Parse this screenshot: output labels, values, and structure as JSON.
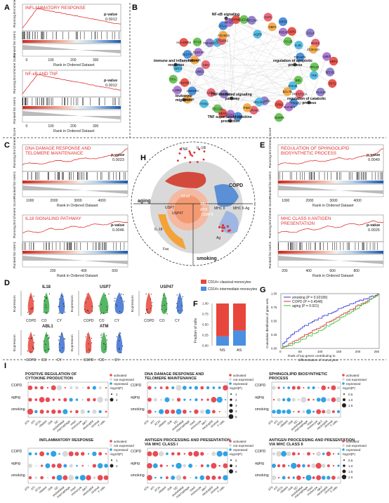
{
  "labels": {
    "A": "A",
    "B": "B",
    "C": "C",
    "D": "D",
    "E": "E",
    "F": "F",
    "G": "G",
    "H": "H",
    "I": "I"
  },
  "gsea_common": {
    "pvalue_label": "p-value",
    "y_top": "Running Enrichment Score",
    "y_bottom": "Ranked list metric",
    "x_label": "Rank in Ordered Dataset"
  },
  "gsea_A": [
    {
      "title": "INFLAMMATORY RESPONSE",
      "pvalue": "0.0012",
      "ticks": [
        "0",
        "100",
        "200",
        "300"
      ]
    },
    {
      "title": "NF-κB AND TNF",
      "pvalue": "0.0012",
      "ticks": [
        "0",
        "100",
        "200",
        "300"
      ]
    }
  ],
  "gsea_C": [
    {
      "title": "DNA DAMAGE RESPONSE AND TELOMERE MAINTENANCE",
      "pvalue": "0.0023",
      "ticks": [
        "1000",
        "2000",
        "3000",
        "4000"
      ]
    },
    {
      "title": "IL18 SIGNALING PATHWAY",
      "pvalue": "0.0046",
      "ticks": [
        "200",
        "400",
        "600"
      ]
    }
  ],
  "gsea_E": [
    {
      "title": "REGULATION OF SPHINGOLIPID BIOSYNTHETIC PROCESS",
      "pvalue": "0.0049",
      "ticks": [
        "1000",
        "2000",
        "3000",
        "4000"
      ]
    },
    {
      "title": "MHC CLASS II ANTIGEN PRESENTATION",
      "pvalue": "0.0026",
      "ticks": [
        "200",
        "400",
        "600",
        "800"
      ]
    }
  ],
  "network": {
    "hubs": [
      "NF-κB signaling",
      "immune and inflammatory response",
      "regulation of apoptotic process",
      "leukocyte migration",
      "TNF mediated signaling pathway",
      "TNF superfamily cytokine production",
      "regulation of catabolic process"
    ],
    "genes": [
      "TET2",
      "BID",
      "PLAUR",
      "STK40",
      "PPP1R15A",
      "BCL7B",
      "SERPINB2",
      "MAP4K4",
      "ERN1",
      "DUSP6",
      "TNFAIP8",
      "BCL2A1",
      "DRAM1",
      "PIM3",
      "SOD2",
      "SAV1",
      "HES1",
      "SEC22B",
      "PFKFB3",
      "PTPN1",
      "AZIN1",
      "CHMP4B",
      "HNRNPC",
      "IL10RA",
      "MAP3K3",
      "TIFA",
      "LIMS1",
      "SDC4",
      "ADA",
      "B4GALT1",
      "SLC7A5",
      "CLEC4D",
      "HLA-DRB5",
      "PTX3",
      "TNFAIP6",
      "CCRL2",
      "PTGER2",
      "ADAM15",
      "CFLAR",
      "NFKB1",
      "SERPINE1",
      "CLEC4E",
      "SEC24A",
      "AQP9",
      "CLTA",
      "GBP2",
      "ARF6",
      "PDE4B",
      "OLR1",
      "CCL20",
      "CCL4",
      "IL1B",
      "IRAK2",
      "ZC3H12A",
      "TNFAIP3",
      "UBE2",
      "XBP1",
      "RPL23",
      "SEC61",
      "TNF"
    ]
  },
  "diagram_H": {
    "labels": [
      "TNF",
      "IL-1B",
      "aging",
      "COPD",
      "smoking",
      "NFκB",
      "USP7",
      "USP47",
      "ABL1",
      "ATM",
      "IL-18",
      "Fas",
      "MHC II",
      "MHC II-Ag",
      "Ag",
      "CEBPB"
    ]
  },
  "violin_D": {
    "genes": [
      "IL18",
      "USP7",
      "USP47",
      "ABL1",
      "ATM"
    ],
    "groups": [
      "COPD",
      "CO",
      "CY"
    ],
    "ylabel": "Expression",
    "group_colors": [
      "#e8463c",
      "#3aa94a",
      "#3b6fd0"
    ]
  },
  "chart_F": {
    "legend": [
      "CD14+ classical monocytes",
      "CD14+ intermediate monocytes"
    ],
    "ylabel": "Fraction of cells",
    "categories": [
      "NS",
      "AS"
    ],
    "classical": [
      0.78,
      0.64
    ],
    "intermediate": [
      0.22,
      0.36
    ],
    "yticks": [
      "0.00",
      "0.25",
      "0.50",
      "0.75",
      "1.00"
    ],
    "colors": [
      "#e8463c",
      "#4a8fe0"
    ]
  },
  "chart_G": {
    "ylabel": "Cumulative distribution of gene sets",
    "xlabel": "Rank of top genes contributing to differentiation of monocytes",
    "legend": [
      "smoking (P = 0.02189)",
      "COPD (P = 0.4548)",
      "aging (P = 0.921)"
    ],
    "colors": [
      "#2b35d8",
      "#e0302a",
      "#36c236"
    ],
    "xticks": [
      "0",
      "50",
      "100",
      "150",
      "200",
      "250"
    ],
    "yticks": [
      "0.00",
      "0.25",
      "0.50",
      "0.75",
      "1.00"
    ]
  },
  "dotplots": {
    "rows": [
      "COPD",
      "aging",
      "smoking"
    ],
    "cells": [
      "ATII",
      "ATI",
      "AT2s",
      "ciliated",
      "club",
      "DC",
      "endothelial",
      "macrophage",
      "mast",
      "monocyte",
      "NKT",
      "neutrophil",
      "stromal",
      "T cells"
    ],
    "legend_head": [
      "activated",
      "not expressed",
      "repressed"
    ],
    "legend_sub": "-log10(P)",
    "panels": [
      {
        "title": "POSITIVE REGULATION OF CYTOKINE PRODUCTION",
        "sizes": [
          "1",
          "2"
        ]
      },
      {
        "title": "DNA DAMAGE RESPONSE AND TELOMERE MAINTENANCE",
        "sizes": [
          "1",
          "2",
          "3",
          "4",
          "5"
        ]
      },
      {
        "title": "SPHINGOLIPID BIOSYNTHETIC PROCESS",
        "sizes": [
          "0.5",
          "1.0",
          "1.5"
        ]
      },
      {
        "title": "INFLAMMATORY RESPONSE",
        "sizes": [
          "1",
          "2"
        ]
      },
      {
        "title": "ANTIGEN PROCESSING AND PRESENTATION VIA MHC CLASS I",
        "sizes": [
          "2",
          "4",
          "6"
        ]
      },
      {
        "title": "ANTIGEN PROCESSING AND PRESENTATION VIA MHC CLASS II",
        "sizes": [
          "0.5",
          "1.0",
          "1.5",
          "2.0"
        ]
      }
    ]
  },
  "colors": {
    "red": "#e03030",
    "blue": "#2a6fcf",
    "cyan": "#46b6e2",
    "pink": "#e85a6a",
    "green": "#5fbf49",
    "purple": "#8876c8",
    "orange": "#f3a33a"
  }
}
